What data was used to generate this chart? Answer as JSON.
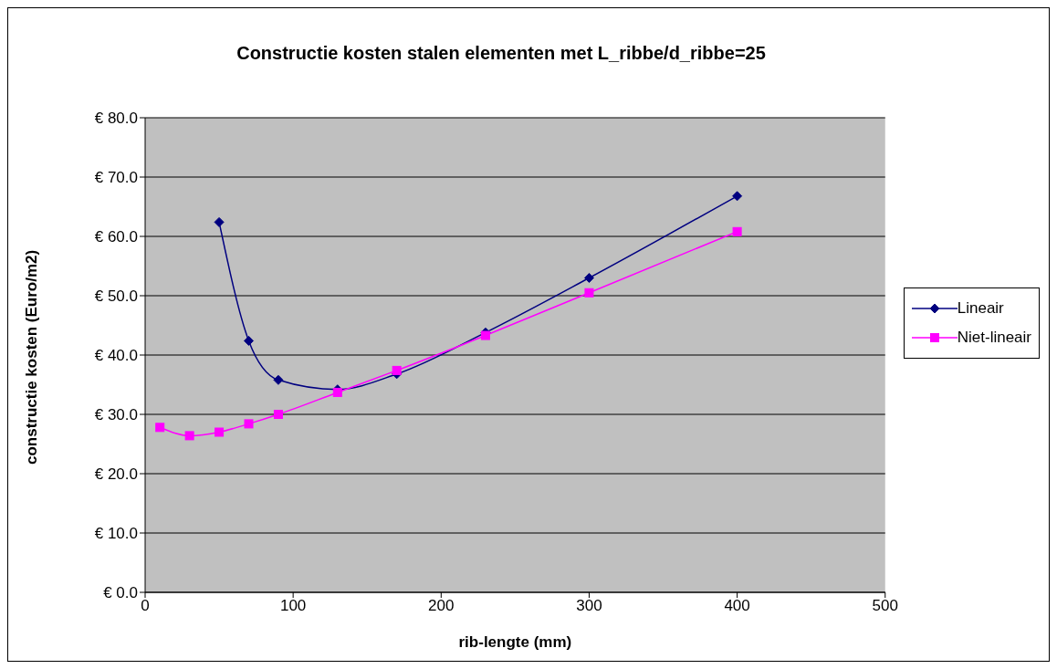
{
  "chart_data": {
    "type": "line",
    "title": "Constructie kosten stalen elementen met L_ribbe/d_ribbe=25",
    "xlabel": "rib-lengte (mm)",
    "ylabel": "constructie kosten (Euro/m2)",
    "xlim": [
      0,
      500
    ],
    "xticks": [
      0,
      100,
      200,
      300,
      400,
      500
    ],
    "ylim": [
      0,
      80
    ],
    "yticks": [
      {
        "value": 0,
        "label": "€ 0.0"
      },
      {
        "value": 10,
        "label": "€ 10.0"
      },
      {
        "value": 20,
        "label": "€ 20.0"
      },
      {
        "value": 30,
        "label": "€ 30.0"
      },
      {
        "value": 40,
        "label": "€ 40.0"
      },
      {
        "value": 50,
        "label": "€ 50.0"
      },
      {
        "value": 60,
        "label": "€ 60.0"
      },
      {
        "value": 70,
        "label": "€ 70.0"
      },
      {
        "value": 80,
        "label": "€ 80.0"
      }
    ],
    "grid": "y",
    "legend": "right",
    "line_style": "solid",
    "series": [
      {
        "name": "Lineair",
        "color": "#000080",
        "marker": "diamond",
        "x": [
          50,
          70,
          90,
          130,
          170,
          230,
          300,
          400
        ],
        "values": [
          62.4,
          42.4,
          35.8,
          34.2,
          36.8,
          43.8,
          53,
          66.8
        ]
      },
      {
        "name": "Niet-lineair",
        "color": "#ff00ff",
        "marker": "square",
        "x": [
          10,
          30,
          50,
          70,
          90,
          130,
          170,
          230,
          300,
          400
        ],
        "values": [
          27.8,
          26.4,
          27,
          28.4,
          30,
          33.7,
          37.4,
          43.3,
          50.5,
          60.8
        ]
      }
    ]
  }
}
